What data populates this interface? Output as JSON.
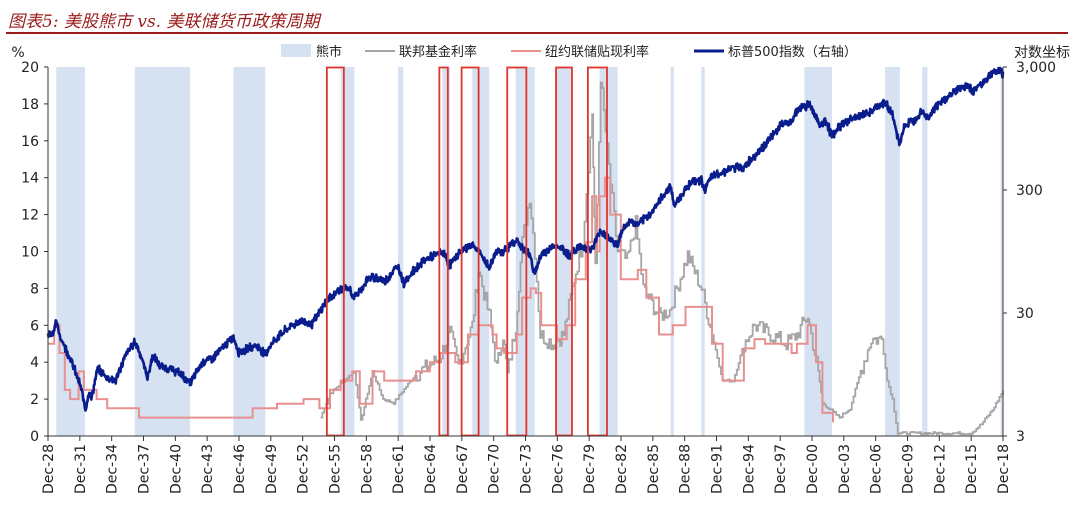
{
  "title": "图表5: 美股熊市 vs. 美联储货币政策周期",
  "chart_data": {
    "type": "line",
    "y_left_label": "%",
    "y_right_label": "对数坐标",
    "y_left": {
      "min": 0,
      "max": 20,
      "ticks": [
        "0",
        "2",
        "4",
        "6",
        "8",
        "10",
        "12",
        "14",
        "16",
        "18",
        "20"
      ]
    },
    "y_right": {
      "min": 3,
      "max": 3000,
      "scale": "log",
      "ticks": [
        "3",
        "30",
        "300",
        "3,000"
      ]
    },
    "x_range": [
      1928.92,
      2018.92
    ],
    "x_ticks": [
      "Dec-28",
      "Dec-31",
      "Dec-34",
      "Dec-37",
      "Dec-40",
      "Dec-43",
      "Dec-46",
      "Dec-49",
      "Dec-52",
      "Dec-55",
      "Dec-58",
      "Dec-61",
      "Dec-64",
      "Dec-67",
      "Dec-70",
      "Dec-73",
      "Dec-76",
      "Dec-79",
      "Dec-82",
      "Dec-85",
      "Dec-88",
      "Dec-91",
      "Dec-94",
      "Dec-97",
      "Dec-00",
      "Dec-03",
      "Dec-06",
      "Dec-09",
      "Dec-12",
      "Dec-15",
      "Dec-18"
    ],
    "legend": [
      "熊市",
      "联邦基金利率",
      "纽约联储贴现利率",
      "标普500指数（右轴）"
    ],
    "colors": {
      "bear": "#d6e1f2",
      "fed_funds": "#a6a6a6",
      "discount": "#e89090",
      "sp500": "#0a1d8c",
      "tightening_box": "#e0342c"
    },
    "bear_markets": [
      [
        1929.7,
        1932.4
      ],
      [
        1937.1,
        1942.3
      ],
      [
        1946.4,
        1949.4
      ],
      [
        1956.5,
        1957.8
      ],
      [
        1961.9,
        1962.4
      ],
      [
        1966.1,
        1966.8
      ],
      [
        1968.9,
        1970.5
      ],
      [
        1973.0,
        1974.8
      ],
      [
        1976.8,
        1978.2
      ],
      [
        1980.9,
        1982.6
      ],
      [
        1987.6,
        1987.9
      ],
      [
        1990.5,
        1990.8
      ],
      [
        2000.2,
        2002.8
      ],
      [
        2007.8,
        2009.2
      ],
      [
        2011.3,
        2011.8
      ],
      [
        2018.7,
        2018.9
      ]
    ],
    "tightening_periods": [
      [
        1955.2,
        1956.8
      ],
      [
        1965.8,
        1966.6
      ],
      [
        1967.9,
        1969.5
      ],
      [
        1972.2,
        1974.0
      ],
      [
        1976.8,
        1978.3
      ],
      [
        1979.8,
        1981.6
      ]
    ],
    "fed_funds": [
      [
        1954.6,
        1.0
      ],
      [
        1955.5,
        2.3
      ],
      [
        1956.8,
        3.0
      ],
      [
        1957.8,
        3.5
      ],
      [
        1958.4,
        0.8
      ],
      [
        1959.5,
        3.5
      ],
      [
        1960.5,
        2.0
      ],
      [
        1961.5,
        1.8
      ],
      [
        1963.5,
        3.3
      ],
      [
        1965.8,
        4.2
      ],
      [
        1966.8,
        5.6
      ],
      [
        1967.6,
        3.8
      ],
      [
        1968.9,
        6.0
      ],
      [
        1969.5,
        9.0
      ],
      [
        1970.5,
        6.5
      ],
      [
        1971.2,
        3.7
      ],
      [
        1971.8,
        5.5
      ],
      [
        1972.2,
        3.3
      ],
      [
        1973.0,
        6.0
      ],
      [
        1973.6,
        10.5
      ],
      [
        1974.3,
        13.0
      ],
      [
        1974.8,
        10.0
      ],
      [
        1975.3,
        5.5
      ],
      [
        1976.5,
        5.0
      ],
      [
        1977.5,
        5.5
      ],
      [
        1978.5,
        8.5
      ],
      [
        1979.3,
        10.5
      ],
      [
        1980.2,
        17.5
      ],
      [
        1980.5,
        9.0
      ],
      [
        1981.0,
        19.5
      ],
      [
        1981.6,
        15.5
      ],
      [
        1982.6,
        10.0
      ],
      [
        1983.5,
        9.5
      ],
      [
        1984.3,
        11.5
      ],
      [
        1985.0,
        8.0
      ],
      [
        1986.5,
        6.5
      ],
      [
        1987.5,
        6.8
      ],
      [
        1989.2,
        9.8
      ],
      [
        1990.5,
        8.0
      ],
      [
        1991.5,
        5.5
      ],
      [
        1992.5,
        3.0
      ],
      [
        1993.5,
        3.0
      ],
      [
        1994.5,
        5.0
      ],
      [
        1995.5,
        6.0
      ],
      [
        1997.0,
        5.5
      ],
      [
        1998.5,
        5.0
      ],
      [
        1999.5,
        5.5
      ],
      [
        2000.5,
        6.5
      ],
      [
        2001.5,
        3.5
      ],
      [
        2001.9,
        1.8
      ],
      [
        2002.9,
        1.3
      ],
      [
        2003.5,
        1.0
      ],
      [
        2004.5,
        1.5
      ],
      [
        2005.5,
        3.5
      ],
      [
        2006.5,
        5.25
      ],
      [
        2007.5,
        5.25
      ],
      [
        2008.0,
        3.0
      ],
      [
        2008.5,
        2.0
      ],
      [
        2009.0,
        0.15
      ],
      [
        2015.9,
        0.15
      ],
      [
        2016.9,
        0.65
      ],
      [
        2017.9,
        1.4
      ],
      [
        2018.92,
        2.45
      ]
    ],
    "discount_rate": [
      [
        1928.92,
        5.0
      ],
      [
        1929.5,
        6.0
      ],
      [
        1930.0,
        4.5
      ],
      [
        1930.5,
        2.5
      ],
      [
        1931.0,
        2.0
      ],
      [
        1931.8,
        3.5
      ],
      [
        1932.3,
        2.5
      ],
      [
        1933.5,
        2.0
      ],
      [
        1934.5,
        1.5
      ],
      [
        1937.2,
        1.5
      ],
      [
        1937.5,
        1.0
      ],
      [
        1942.5,
        1.0
      ],
      [
        1946.5,
        1.0
      ],
      [
        1948.2,
        1.5
      ],
      [
        1950.5,
        1.75
      ],
      [
        1953.0,
        2.0
      ],
      [
        1954.5,
        1.5
      ],
      [
        1955.5,
        2.5
      ],
      [
        1956.5,
        3.0
      ],
      [
        1957.6,
        3.5
      ],
      [
        1958.3,
        1.75
      ],
      [
        1959.5,
        3.5
      ],
      [
        1960.6,
        3.0
      ],
      [
        1963.6,
        3.5
      ],
      [
        1964.9,
        4.0
      ],
      [
        1965.9,
        4.5
      ],
      [
        1967.3,
        4.0
      ],
      [
        1968.5,
        5.5
      ],
      [
        1969.5,
        6.0
      ],
      [
        1970.8,
        5.5
      ],
      [
        1971.2,
        4.75
      ],
      [
        1971.9,
        4.5
      ],
      [
        1973.1,
        5.5
      ],
      [
        1973.6,
        7.5
      ],
      [
        1974.4,
        8.0
      ],
      [
        1974.9,
        7.75
      ],
      [
        1975.4,
        6.0
      ],
      [
        1976.9,
        5.25
      ],
      [
        1977.8,
        6.0
      ],
      [
        1978.6,
        8.5
      ],
      [
        1979.6,
        10.5
      ],
      [
        1980.2,
        13.0
      ],
      [
        1980.6,
        10.0
      ],
      [
        1980.9,
        13.0
      ],
      [
        1981.4,
        14.0
      ],
      [
        1981.9,
        12.0
      ],
      [
        1982.4,
        12.0
      ],
      [
        1982.9,
        8.5
      ],
      [
        1984.5,
        9.0
      ],
      [
        1985.3,
        7.5
      ],
      [
        1986.5,
        5.5
      ],
      [
        1987.8,
        6.0
      ],
      [
        1989.0,
        7.0
      ],
      [
        1990.5,
        7.0
      ],
      [
        1991.5,
        5.0
      ],
      [
        1992.5,
        3.0
      ],
      [
        1993.5,
        3.0
      ],
      [
        1994.5,
        4.75
      ],
      [
        1995.5,
        5.25
      ],
      [
        1996.5,
        5.0
      ],
      [
        1998.5,
        5.0
      ],
      [
        1999.0,
        4.5
      ],
      [
        1999.5,
        5.0
      ],
      [
        2000.5,
        6.0
      ],
      [
        2001.3,
        4.0
      ],
      [
        2001.9,
        1.25
      ],
      [
        2002.9,
        0.75
      ]
    ],
    "sp500_anchors": [
      [
        1928.92,
        20
      ],
      [
        1929.4,
        21
      ],
      [
        1929.7,
        25
      ],
      [
        1930.0,
        20
      ],
      [
        1930.5,
        16
      ],
      [
        1931.0,
        13
      ],
      [
        1931.5,
        10
      ],
      [
        1932.0,
        7.5
      ],
      [
        1932.45,
        5.0
      ],
      [
        1932.8,
        7.0
      ],
      [
        1933.0,
        6.0
      ],
      [
        1933.6,
        10.5
      ],
      [
        1934.5,
        9.0
      ],
      [
        1935.3,
        8.5
      ],
      [
        1936.3,
        14.0
      ],
      [
        1937.1,
        17.5
      ],
      [
        1937.5,
        15.0
      ],
      [
        1938.3,
        9.0
      ],
      [
        1938.8,
        13.5
      ],
      [
        1939.5,
        11.0
      ],
      [
        1940.5,
        10.5
      ],
      [
        1941.5,
        9.5
      ],
      [
        1942.3,
        8.0
      ],
      [
        1942.8,
        9.5
      ],
      [
        1943.5,
        12.0
      ],
      [
        1944.5,
        13.0
      ],
      [
        1945.5,
        16.0
      ],
      [
        1946.4,
        19.0
      ],
      [
        1946.9,
        14.5
      ],
      [
        1947.5,
        15.0
      ],
      [
        1948.5,
        16.5
      ],
      [
        1949.4,
        14.0
      ],
      [
        1949.9,
        16.5
      ],
      [
        1950.8,
        20.0
      ],
      [
        1951.8,
        23.5
      ],
      [
        1952.9,
        26.0
      ],
      [
        1953.8,
        24.5
      ],
      [
        1954.5,
        30.0
      ],
      [
        1955.0,
        36.0
      ],
      [
        1956.4,
        47.0
      ],
      [
        1957.3,
        47.0
      ],
      [
        1957.8,
        40.0
      ],
      [
        1958.5,
        48.0
      ],
      [
        1959.0,
        56.0
      ],
      [
        1959.8,
        59.0
      ],
      [
        1960.6,
        54.0
      ],
      [
        1961.9,
        72.0
      ],
      [
        1962.45,
        53.0
      ],
      [
        1963.5,
        68.0
      ],
      [
        1964.5,
        82.0
      ],
      [
        1966.1,
        94.0
      ],
      [
        1966.8,
        74.0
      ],
      [
        1967.8,
        95.0
      ],
      [
        1968.9,
        108.0
      ],
      [
        1969.5,
        95.0
      ],
      [
        1970.5,
        70.0
      ],
      [
        1971.3,
        100.0
      ],
      [
        1971.8,
        92.0
      ],
      [
        1972.5,
        108.0
      ],
      [
        1973.0,
        118.0
      ],
      [
        1973.8,
        97.0
      ],
      [
        1974.3,
        90.0
      ],
      [
        1974.8,
        63.0
      ],
      [
        1975.5,
        92.0
      ],
      [
        1976.8,
        107.0
      ],
      [
        1977.5,
        98.0
      ],
      [
        1978.2,
        87.0
      ],
      [
        1978.8,
        103.0
      ],
      [
        1979.5,
        103.0
      ],
      [
        1980.2,
        98.0
      ],
      [
        1980.9,
        138.0
      ],
      [
        1981.5,
        130.0
      ],
      [
        1982.6,
        105.0
      ],
      [
        1983.0,
        140.0
      ],
      [
        1983.8,
        168.0
      ],
      [
        1984.5,
        155.0
      ],
      [
        1985.5,
        185.0
      ],
      [
        1986.5,
        240.0
      ],
      [
        1987.6,
        330.0
      ],
      [
        1987.9,
        225.0
      ],
      [
        1988.5,
        265.0
      ],
      [
        1989.5,
        350.0
      ],
      [
        1990.5,
        360.0
      ],
      [
        1990.8,
        305.0
      ],
      [
        1991.5,
        385.0
      ],
      [
        1992.5,
        420.0
      ],
      [
        1993.5,
        455.0
      ],
      [
        1994.5,
        460.0
      ],
      [
        1995.5,
        570.0
      ],
      [
        1996.5,
        700.0
      ],
      [
        1997.5,
        900.0
      ],
      [
        1998.5,
        1100.0
      ],
      [
        1998.7,
        980.0
      ],
      [
        1999.5,
        1330.0
      ],
      [
        2000.2,
        1450.0
      ],
      [
        2000.7,
        1480.0
      ],
      [
        2001.3,
        1200.0
      ],
      [
        2001.7,
        1000.0
      ],
      [
        2002.3,
        1100.0
      ],
      [
        2002.8,
        800.0
      ],
      [
        2003.5,
        980.0
      ],
      [
        2004.5,
        1130.0
      ],
      [
        2005.5,
        1200.0
      ],
      [
        2006.5,
        1300.0
      ],
      [
        2007.8,
        1550.0
      ],
      [
        2008.5,
        1250.0
      ],
      [
        2008.9,
        850.0
      ],
      [
        2009.2,
        700.0
      ],
      [
        2009.6,
        1000.0
      ],
      [
        2010.5,
        1100.0
      ],
      [
        2011.3,
        1350.0
      ],
      [
        2011.8,
        1150.0
      ],
      [
        2012.5,
        1400.0
      ],
      [
        2013.5,
        1650.0
      ],
      [
        2014.5,
        1950.0
      ],
      [
        2015.5,
        2100.0
      ],
      [
        2016.1,
        1900.0
      ],
      [
        2016.9,
        2230.0
      ],
      [
        2017.9,
        2650.0
      ],
      [
        2018.1,
        2800.0
      ],
      [
        2018.3,
        2650.0
      ],
      [
        2018.7,
        2900.0
      ],
      [
        2018.85,
        2500.0
      ],
      [
        2018.92,
        2750.0
      ]
    ]
  }
}
